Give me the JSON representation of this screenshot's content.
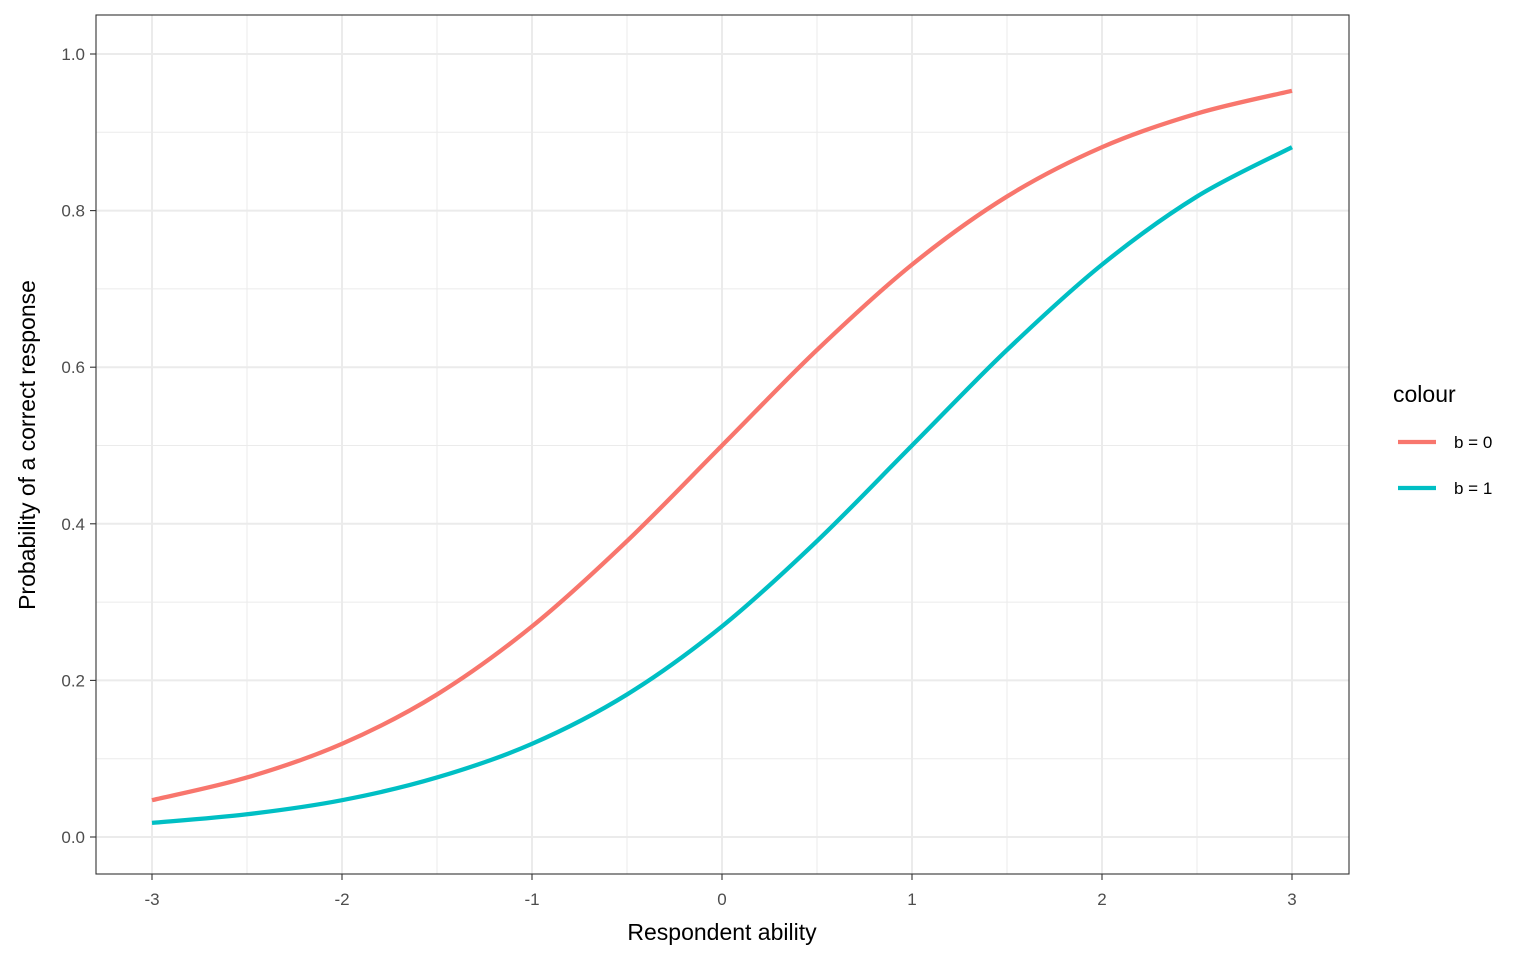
{
  "chart_data": {
    "type": "line",
    "title": "",
    "xlabel": "Respondent ability",
    "ylabel": "Probability of a correct response",
    "xlim": [
      -3,
      3
    ],
    "ylim": [
      0,
      1
    ],
    "x_ticks": [
      "-3",
      "-2",
      "-1",
      "0",
      "1",
      "2",
      "3"
    ],
    "y_ticks": [
      "0.0",
      "0.2",
      "0.4",
      "0.6",
      "0.8",
      "1.0"
    ],
    "grid": true,
    "legend": {
      "title": "colour",
      "position": "right"
    },
    "series": [
      {
        "name": "b = 0",
        "color": "#F8766D",
        "x": [
          -3,
          -2.5,
          -2,
          -1.5,
          -1,
          -0.5,
          0,
          0.5,
          1,
          1.5,
          2,
          2.5,
          3
        ],
        "y": [
          0.047,
          0.076,
          0.119,
          0.182,
          0.269,
          0.378,
          0.5,
          0.622,
          0.731,
          0.818,
          0.881,
          0.924,
          0.953
        ]
      },
      {
        "name": "b = 1",
        "color": "#00BFC4",
        "x": [
          -3,
          -2.5,
          -2,
          -1.5,
          -1,
          -0.5,
          0,
          0.5,
          1,
          1.5,
          2,
          2.5,
          3
        ],
        "y": [
          0.018,
          0.029,
          0.047,
          0.076,
          0.119,
          0.182,
          0.269,
          0.378,
          0.5,
          0.622,
          0.731,
          0.818,
          0.881
        ]
      }
    ]
  }
}
